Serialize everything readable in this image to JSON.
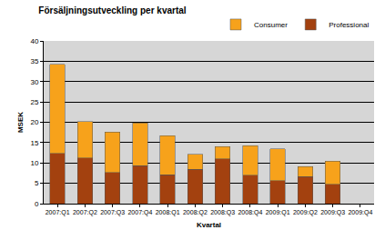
{
  "chart_data": {
    "type": "bar",
    "stacked": true,
    "title": "Försäljningsutveckling per kvartal",
    "x_label": "Kvartal",
    "y_label": "MSEK",
    "categories": [
      "2007:Q1",
      "2007:Q2",
      "2007:Q3",
      "2007:Q4",
      "2008:Q1",
      "2008:Q2",
      "2008:Q3",
      "2008:Q4",
      "2009:Q1",
      "2009:Q2",
      "2009:Q3",
      "2009:Q4"
    ],
    "series": [
      {
        "name": "Professional",
        "color": "#a3410f",
        "values": [
          12.3,
          11.2,
          7.6,
          9.3,
          7.1,
          8.4,
          11.0,
          7.0,
          5.6,
          6.6,
          4.8,
          null
        ]
      },
      {
        "name": "Consumer",
        "color": "#f7a21b",
        "values": [
          22.0,
          9.0,
          10.0,
          10.5,
          9.6,
          3.7,
          3.0,
          7.3,
          7.9,
          2.5,
          5.7,
          null
        ]
      }
    ],
    "ylim": [
      0,
      40
    ],
    "yticks": [
      0,
      5,
      10,
      15,
      20,
      25,
      30,
      35,
      40
    ],
    "grid": true,
    "legend": "top right"
  }
}
